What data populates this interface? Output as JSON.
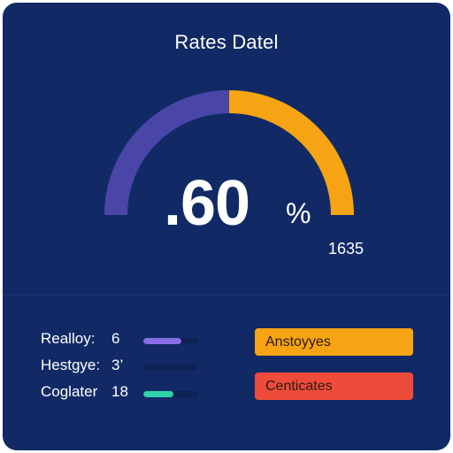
{
  "header": {
    "title": "Rates Datel"
  },
  "gauge": {
    "value_text": ".60",
    "unit": "%",
    "secondary_value": "1635",
    "fill_fraction": 0.5,
    "colors": {
      "left": "#4a46a8",
      "right": "#f6a414",
      "background": "#112a66"
    }
  },
  "metrics": [
    {
      "label": "Realloy:",
      "value": "6",
      "bar_fraction": 0.7,
      "color": "#8a6ee6"
    },
    {
      "label": "Hestgye:",
      "value": "3’",
      "bar_fraction": 0.0,
      "color": "#0e2256"
    },
    {
      "label": "Coglater",
      "value": "18",
      "bar_fraction": 0.55,
      "color": "#2fd3a8"
    }
  ],
  "actions": [
    {
      "label": "Anstoyyes",
      "color": "#f6a414"
    },
    {
      "label": "Centicates",
      "color": "#ef4b3a"
    }
  ]
}
